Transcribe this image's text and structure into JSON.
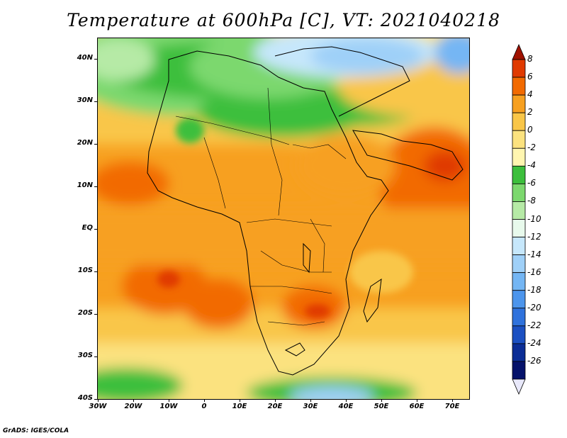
{
  "title": "Temperature at 600hPa [C], VT: 2021040218",
  "footer": "GrADS: IGES/COLA",
  "lat_labels": [
    "40N",
    "30N",
    "20N",
    "10N",
    "EQ",
    "10S",
    "20S",
    "30S",
    "40S"
  ],
  "lon_labels": [
    "30W",
    "20W",
    "10W",
    "0",
    "10E",
    "20E",
    "30E",
    "40E",
    "50E",
    "60E",
    "70E"
  ],
  "colorbar": {
    "labels": [
      "8",
      "6",
      "4",
      "2",
      "0",
      "-2",
      "-4",
      "-6",
      "-8",
      "-10",
      "-12",
      "-14",
      "-16",
      "-18",
      "-20",
      "-22",
      "-24",
      "-26"
    ],
    "colors": [
      "#a01200",
      "#e03a00",
      "#f26a00",
      "#f7a020",
      "#f9c648",
      "#fbe27f",
      "#fff6b0",
      "#3cbf3c",
      "#7cd86e",
      "#b6eaa6",
      "#e8faec",
      "#c6e7fb",
      "#9fd0f8",
      "#74b6f4",
      "#4c95ec",
      "#2f72dc",
      "#1b50c2",
      "#0b2d96",
      "#05126a",
      "#e8e8fa"
    ]
  }
}
